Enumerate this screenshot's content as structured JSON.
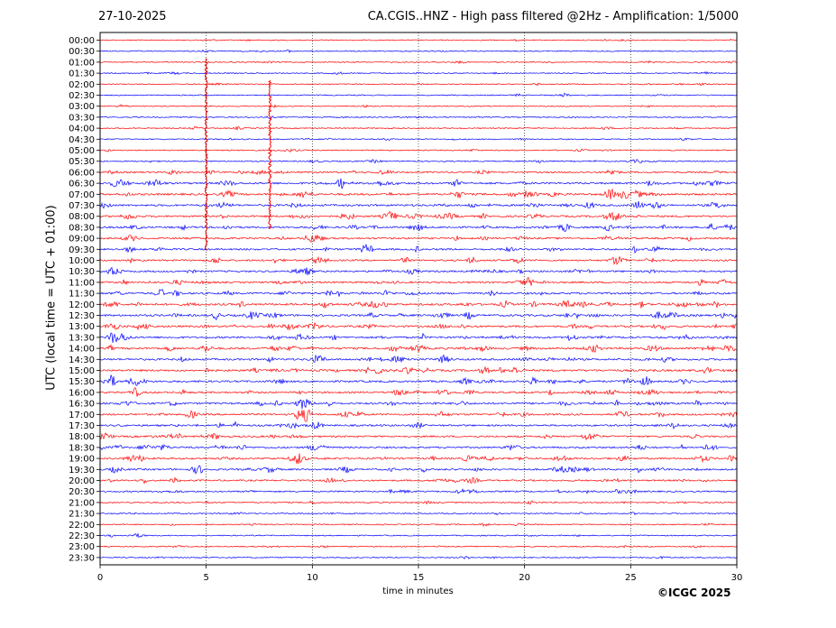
{
  "header": {
    "date": "27-10-2025",
    "title": "CA.CGIS..HNZ - High pass filtered @2Hz - Amplification: 1/5000"
  },
  "footer": {
    "copyright": "©ICGC 2025"
  },
  "chart_data": {
    "type": "line",
    "title": "CA.CGIS..HNZ - High pass filtered @2Hz - Amplification: 1/5000",
    "xlabel": "time in minutes",
    "ylabel": "UTC (local time = UTC + 01:00)",
    "xlim": [
      0,
      30
    ],
    "xticks": [
      0,
      5,
      10,
      15,
      20,
      25,
      30
    ],
    "vertical_gridlines": [
      5,
      10,
      15,
      20,
      25
    ],
    "row_labels": [
      "00:00",
      "00:30",
      "01:00",
      "01:30",
      "02:00",
      "02:30",
      "03:00",
      "03:30",
      "04:00",
      "04:30",
      "05:00",
      "05:30",
      "06:00",
      "06:30",
      "07:00",
      "07:30",
      "08:00",
      "08:30",
      "09:00",
      "09:30",
      "10:00",
      "10:30",
      "11:00",
      "11:30",
      "12:00",
      "12:30",
      "13:00",
      "13:30",
      "14:00",
      "14:30",
      "15:00",
      "15:30",
      "16:00",
      "16:30",
      "17:00",
      "17:30",
      "18:00",
      "18:30",
      "19:00",
      "19:30",
      "20:00",
      "20:30",
      "21:00",
      "21:30",
      "22:00",
      "22:30",
      "23:00",
      "23:30"
    ],
    "trace_colors": [
      "#ff0000",
      "#0000ff"
    ],
    "row_activity": [
      0.25,
      0.25,
      0.25,
      0.25,
      0.25,
      0.25,
      0.25,
      0.28,
      0.28,
      0.3,
      0.3,
      0.35,
      0.6,
      0.8,
      0.85,
      0.8,
      0.75,
      0.75,
      0.7,
      0.7,
      0.65,
      0.7,
      0.7,
      0.8,
      0.9,
      0.85,
      0.8,
      0.8,
      0.85,
      0.8,
      0.85,
      0.8,
      0.75,
      0.8,
      0.75,
      0.7,
      0.7,
      0.7,
      0.75,
      0.7,
      0.6,
      0.55,
      0.4,
      0.35,
      0.3,
      0.3,
      0.3,
      0.3
    ],
    "major_spikes": [
      {
        "minute": 5.0,
        "from_row": "01:00",
        "to_row": "09:30"
      },
      {
        "minute": 8.0,
        "from_row": "02:00",
        "to_row": "08:30"
      }
    ]
  }
}
